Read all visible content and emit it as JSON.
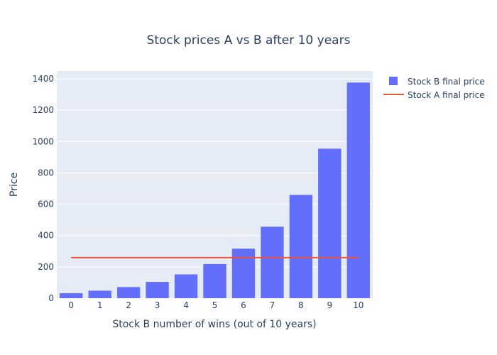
{
  "chart_data": {
    "type": "bar",
    "title": "Stock prices A vs B after 10 years",
    "xlabel": "Stock B number of wins (out of 10 years)",
    "ylabel": "Price",
    "categories": [
      "0",
      "1",
      "2",
      "3",
      "4",
      "5",
      "6",
      "7",
      "8",
      "9",
      "10"
    ],
    "ylim": [
      0,
      1450
    ],
    "yticks": [
      0,
      200,
      400,
      600,
      800,
      1000,
      1200,
      1400
    ],
    "grid": true,
    "legend_position": "top-right",
    "series": [
      {
        "name": "Stock B final price",
        "type": "bar",
        "color": "#636efa",
        "values": [
          32,
          48,
          71,
          104,
          152,
          218,
          316,
          456,
          659,
          954,
          1376
        ]
      },
      {
        "name": "Stock A final price",
        "type": "line",
        "color": "#ef553b",
        "values": [
          259,
          259,
          259,
          259,
          259,
          259,
          259,
          259,
          259,
          259,
          259
        ]
      }
    ],
    "colors": {
      "plot_bg": "#e5ecf6",
      "grid": "#ffffff",
      "text": "#2a3f5f"
    }
  }
}
